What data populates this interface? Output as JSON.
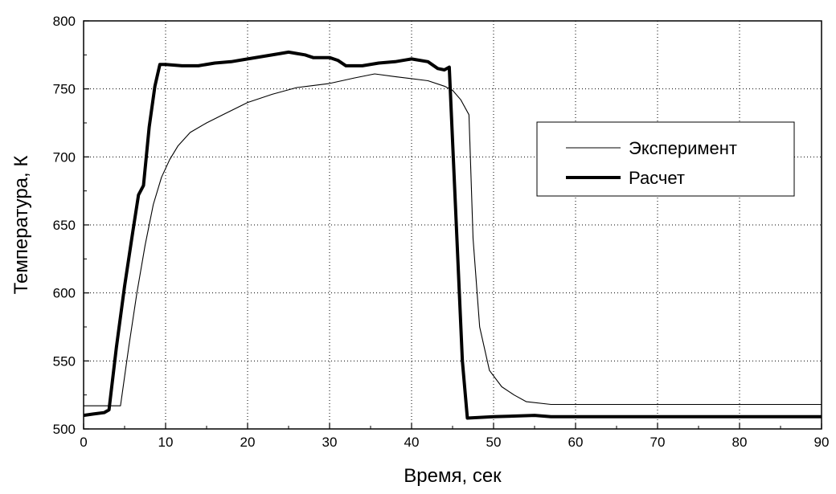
{
  "chart_data": {
    "type": "line",
    "xlabel": "Время, сек",
    "ylabel": "Температура, К",
    "xlim": [
      0,
      90
    ],
    "ylim": [
      500,
      800
    ],
    "xticks": [
      0,
      10,
      20,
      30,
      40,
      50,
      60,
      70,
      80,
      90
    ],
    "yticks": [
      500,
      550,
      600,
      650,
      700,
      750,
      800
    ],
    "grid": true,
    "legend_position": "center-right",
    "series": [
      {
        "name": "Эксперимент",
        "color": "#000000",
        "style": "thin",
        "points": [
          [
            0,
            517
          ],
          [
            4.5,
            517
          ],
          [
            5.5,
            560
          ],
          [
            6.5,
            600
          ],
          [
            7.5,
            635
          ],
          [
            8.5,
            665
          ],
          [
            9.5,
            685
          ],
          [
            10.5,
            698
          ],
          [
            11.5,
            708
          ],
          [
            13,
            718
          ],
          [
            15,
            725
          ],
          [
            17,
            731
          ],
          [
            20,
            740
          ],
          [
            23,
            746
          ],
          [
            26,
            751
          ],
          [
            30,
            754
          ],
          [
            33,
            758
          ],
          [
            35.5,
            761
          ],
          [
            38,
            759
          ],
          [
            42,
            756
          ],
          [
            44,
            752
          ],
          [
            45,
            749
          ],
          [
            46,
            742
          ],
          [
            47,
            731
          ],
          [
            47.5,
            640
          ],
          [
            48.3,
            575
          ],
          [
            49.5,
            543
          ],
          [
            51,
            531
          ],
          [
            52.5,
            525
          ],
          [
            54,
            520
          ],
          [
            57,
            518
          ],
          [
            60,
            518
          ],
          [
            70,
            518
          ],
          [
            80,
            518
          ],
          [
            90,
            518
          ]
        ]
      },
      {
        "name": "Расчет",
        "color": "#000000",
        "style": "thick",
        "points": [
          [
            0,
            510
          ],
          [
            1.2,
            511
          ],
          [
            2.5,
            512
          ],
          [
            3.1,
            514
          ],
          [
            4,
            560
          ],
          [
            5,
            605
          ],
          [
            6,
            645
          ],
          [
            6.7,
            672
          ],
          [
            7.3,
            679
          ],
          [
            8,
            722
          ],
          [
            8.7,
            752
          ],
          [
            9.3,
            768
          ],
          [
            10,
            768
          ],
          [
            12,
            767
          ],
          [
            14,
            767
          ],
          [
            16,
            769
          ],
          [
            18,
            770
          ],
          [
            20,
            772
          ],
          [
            22,
            774
          ],
          [
            24,
            776
          ],
          [
            25,
            777
          ],
          [
            26,
            776
          ],
          [
            27,
            775
          ],
          [
            28,
            773
          ],
          [
            30,
            773
          ],
          [
            31,
            771
          ],
          [
            32,
            767
          ],
          [
            34,
            767
          ],
          [
            36,
            769
          ],
          [
            38,
            770
          ],
          [
            40,
            772
          ],
          [
            42,
            770
          ],
          [
            43.2,
            765
          ],
          [
            44,
            764
          ],
          [
            44.6,
            766
          ],
          [
            46.2,
            550
          ],
          [
            46.8,
            508
          ],
          [
            50,
            509
          ],
          [
            55,
            510
          ],
          [
            57,
            509
          ],
          [
            60,
            509
          ],
          [
            70,
            509
          ],
          [
            75,
            509
          ],
          [
            80,
            509
          ],
          [
            85,
            509
          ],
          [
            90,
            509
          ]
        ]
      }
    ]
  }
}
